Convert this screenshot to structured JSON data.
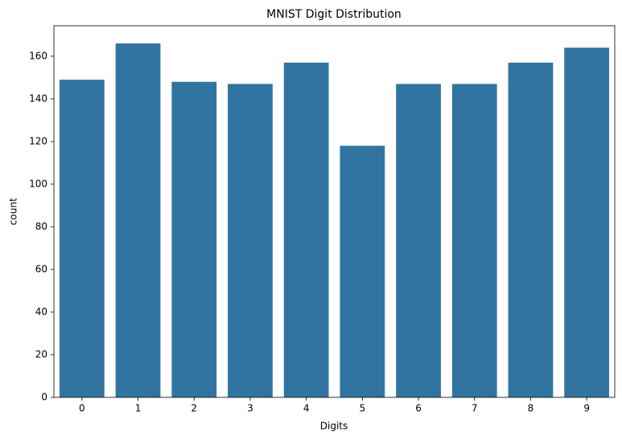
{
  "chart_data": {
    "type": "bar",
    "title": "MNIST Digit Distribution",
    "x_label": "Digits",
    "y_label": "count",
    "categories": [
      "0",
      "1",
      "2",
      "3",
      "4",
      "5",
      "6",
      "7",
      "8",
      "9"
    ],
    "values": [
      149,
      166,
      148,
      147,
      157,
      118,
      147,
      147,
      157,
      164
    ],
    "color": "#3274a1",
    "ylim": [
      0,
      174.3
    ],
    "yticks": [
      0,
      20,
      40,
      60,
      80,
      100,
      120,
      140,
      160
    ],
    "grid": false
  }
}
